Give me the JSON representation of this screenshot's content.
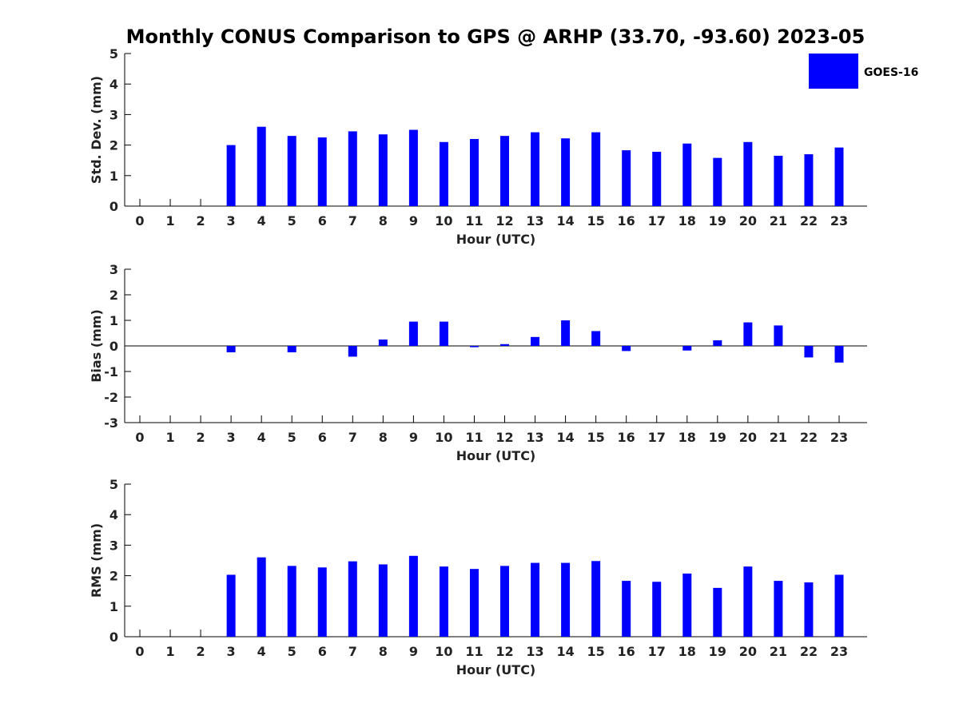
{
  "title": "Monthly CONUS Comparison to GPS @ ARHP (33.70, -93.60) 2023-05",
  "legend": {
    "label": "GOES-16",
    "color": "#0000ff"
  },
  "chart_data": [
    {
      "type": "bar",
      "xlabel": "Hour (UTC)",
      "ylabel": "Std. Dev. (mm)",
      "ylim": [
        0,
        5
      ],
      "yticks": [
        0,
        1,
        2,
        3,
        4,
        5
      ],
      "categories": [
        0,
        1,
        2,
        3,
        4,
        5,
        6,
        7,
        8,
        9,
        10,
        11,
        12,
        13,
        14,
        15,
        16,
        17,
        18,
        19,
        20,
        21,
        22,
        23
      ],
      "series": [
        {
          "name": "GOES-16",
          "values": [
            null,
            null,
            null,
            2.0,
            2.6,
            2.3,
            2.25,
            2.45,
            2.35,
            2.5,
            2.1,
            2.2,
            2.3,
            2.42,
            2.22,
            2.42,
            1.83,
            1.78,
            2.05,
            1.58,
            2.1,
            1.65,
            1.7,
            1.92
          ]
        }
      ]
    },
    {
      "type": "bar",
      "xlabel": "Hour (UTC)",
      "ylabel": "Bias (mm)",
      "ylim": [
        -3,
        3
      ],
      "yticks": [
        -3,
        -2,
        -1,
        0,
        1,
        2,
        3
      ],
      "categories": [
        0,
        1,
        2,
        3,
        4,
        5,
        6,
        7,
        8,
        9,
        10,
        11,
        12,
        13,
        14,
        15,
        16,
        17,
        18,
        19,
        20,
        21,
        22,
        23
      ],
      "series": [
        {
          "name": "GOES-16",
          "values": [
            null,
            null,
            null,
            -0.25,
            0.0,
            -0.25,
            0.0,
            -0.42,
            0.25,
            0.95,
            0.95,
            -0.05,
            0.07,
            0.35,
            1.0,
            0.58,
            -0.2,
            0.0,
            -0.18,
            0.22,
            0.92,
            0.8,
            -0.45,
            -0.65
          ]
        }
      ]
    },
    {
      "type": "bar",
      "xlabel": "Hour (UTC)",
      "ylabel": "RMS (mm)",
      "ylim": [
        0,
        5
      ],
      "yticks": [
        0,
        1,
        2,
        3,
        4,
        5
      ],
      "categories": [
        0,
        1,
        2,
        3,
        4,
        5,
        6,
        7,
        8,
        9,
        10,
        11,
        12,
        13,
        14,
        15,
        16,
        17,
        18,
        19,
        20,
        21,
        22,
        23
      ],
      "series": [
        {
          "name": "GOES-16",
          "values": [
            null,
            null,
            null,
            2.03,
            2.6,
            2.32,
            2.27,
            2.47,
            2.37,
            2.65,
            2.3,
            2.22,
            2.32,
            2.42,
            2.42,
            2.48,
            1.83,
            1.8,
            2.07,
            1.6,
            2.3,
            1.83,
            1.78,
            2.03
          ]
        }
      ]
    }
  ]
}
